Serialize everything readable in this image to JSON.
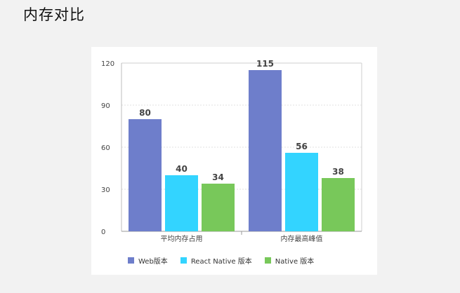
{
  "page": {
    "title": "内存对比"
  },
  "chart_data": {
    "type": "bar",
    "categories": [
      "平均内存占用",
      "内存最高峰值"
    ],
    "series": [
      {
        "name": "Web版本",
        "values": [
          80,
          115
        ],
        "color": "#6e7ecb"
      },
      {
        "name": "React Native 版本",
        "values": [
          40,
          56
        ],
        "color": "#33d4ff"
      },
      {
        "name": "Native 版本",
        "values": [
          34,
          38
        ],
        "color": "#78c85a"
      }
    ],
    "yticks": [
      "0",
      "30",
      "60",
      "90",
      "120"
    ],
    "ylim": [
      0,
      120
    ],
    "grid": true,
    "legend_position": "bottom"
  }
}
